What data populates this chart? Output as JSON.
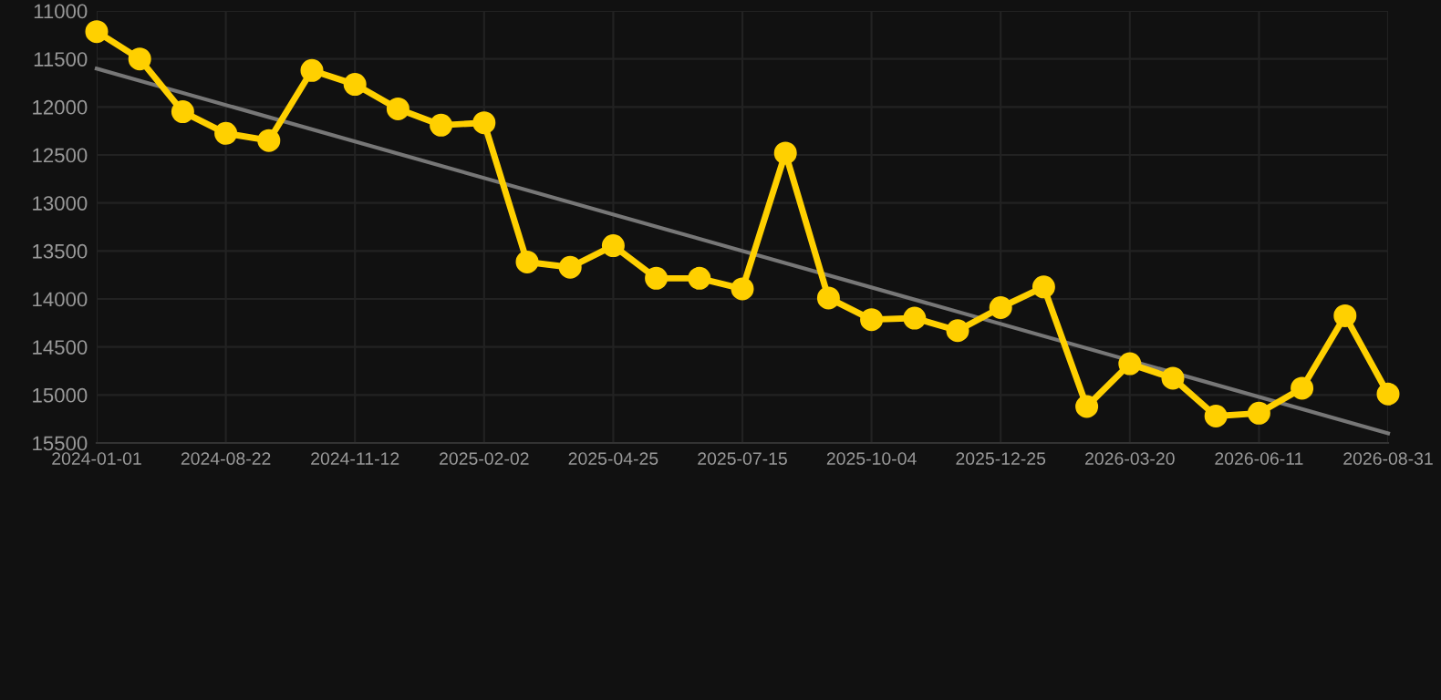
{
  "chart_data": {
    "type": "line",
    "categories": [
      "2024-01-01",
      null,
      null,
      "2024-08-22",
      null,
      null,
      "2024-11-12",
      null,
      null,
      "2025-02-02",
      null,
      null,
      "2025-04-25",
      null,
      null,
      "2025-07-15",
      null,
      null,
      "2025-10-04",
      null,
      null,
      "2025-12-25",
      null,
      null,
      "2026-03-20",
      null,
      null,
      "2026-06-11",
      null,
      null,
      "2026-08-31"
    ],
    "series": [
      {
        "color": "#777777",
        "marker": "none",
        "values": [
          11600,
          null,
          null,
          null,
          null,
          null,
          null,
          null,
          null,
          null,
          null,
          null,
          null,
          null,
          null,
          null,
          null,
          null,
          null,
          null,
          null,
          null,
          null,
          null,
          null,
          null,
          null,
          null,
          null,
          null,
          15400
        ]
      },
      {
        "color": "#ffd000",
        "marker": "circle",
        "values": [
          11215,
          11500,
          12050,
          12275,
          12350,
          11620,
          11765,
          12020,
          12190,
          12165,
          13615,
          13670,
          13445,
          13785,
          13785,
          13895,
          12480,
          13990,
          14215,
          14200,
          14330,
          14090,
          13875,
          15120,
          14675,
          14825,
          15220,
          15190,
          14930,
          14175,
          14990
        ]
      }
    ],
    "ylim": [
      15500,
      11000
    ],
    "yticks": [
      11000,
      11500,
      12000,
      12500,
      13000,
      13500,
      14000,
      14500,
      15000,
      15500
    ],
    "grid": true
  }
}
